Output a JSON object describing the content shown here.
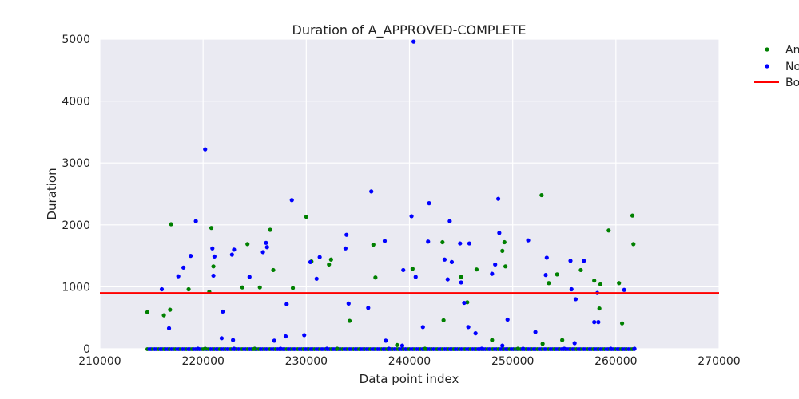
{
  "chart_data": {
    "type": "scatter",
    "title": "Duration of A_APPROVED-COMPLETE",
    "xlabel": "Data point index",
    "ylabel": "Duration",
    "xlim": [
      210000,
      270000
    ],
    "ylim": [
      0,
      5000
    ],
    "xticks": [
      "210000",
      "220000",
      "230000",
      "240000",
      "250000",
      "260000",
      "270000"
    ],
    "yticks": [
      "0",
      "1000",
      "2000",
      "3000",
      "4000",
      "5000"
    ],
    "grid": true,
    "legend_position": "outside right, partially cut off",
    "threshold": {
      "name": "Bo",
      "value": 900,
      "color": "#ff0000"
    },
    "series": [
      {
        "name": "An",
        "color": "#008000",
        "x": [
          214600,
          216200,
          216900,
          216800,
          218600,
          220600,
          220800,
          221000,
          223800,
          224300,
          225500,
          226500,
          226800,
          228700,
          230000,
          230500,
          232200,
          232400,
          234200,
          236500,
          236700,
          238800,
          240300,
          243200,
          243300,
          245000,
          245600,
          246500,
          248000,
          249000,
          249200,
          249300,
          252800,
          252900,
          253500,
          254300,
          254800,
          256600,
          257900,
          258500,
          258400,
          259300,
          260300,
          260600,
          261600,
          261700,
          220200,
          225000,
          233000,
          241500,
          250500
        ],
        "y": [
          590,
          540,
          2010,
          630,
          960,
          920,
          1950,
          1330,
          990,
          1690,
          990,
          1920,
          1270,
          980,
          2130,
          1410,
          1360,
          1440,
          450,
          1680,
          1150,
          60,
          1290,
          1720,
          460,
          1160,
          750,
          1280,
          140,
          1580,
          1720,
          1330,
          2480,
          80,
          1060,
          1200,
          140,
          1270,
          1100,
          1040,
          650,
          1910,
          1060,
          410,
          2150,
          1690,
          0,
          0,
          0,
          0,
          0
        ]
      },
      {
        "name": "No",
        "color": "#0000ff",
        "x": [
          216000,
          216700,
          217600,
          218100,
          218800,
          219300,
          220200,
          220900,
          221000,
          221100,
          221800,
          221900,
          222800,
          223000,
          222900,
          224500,
          225800,
          226100,
          226200,
          226900,
          228000,
          228100,
          228600,
          229800,
          230400,
          231000,
          231300,
          233800,
          233900,
          234100,
          236000,
          236300,
          237600,
          237700,
          239300,
          239400,
          240200,
          240400,
          240600,
          241300,
          241800,
          241900,
          243400,
          243700,
          243900,
          244100,
          244900,
          245000,
          245300,
          245700,
          245800,
          246400,
          248000,
          248300,
          248600,
          248700,
          249000,
          249500,
          251500,
          252200,
          253200,
          253300,
          255600,
          255700,
          256000,
          256100,
          256900,
          257900,
          258200,
          258300,
          260800,
          219500,
          223000,
          227500,
          232000,
          238000,
          247000,
          251000,
          255000,
          259500,
          261800
        ],
        "y": [
          960,
          330,
          1170,
          1310,
          1500,
          2060,
          3220,
          1620,
          1180,
          1490,
          170,
          600,
          1520,
          1600,
          140,
          1160,
          1560,
          1710,
          1640,
          130,
          200,
          720,
          2400,
          220,
          1400,
          1130,
          1480,
          1620,
          1840,
          730,
          660,
          2540,
          1740,
          130,
          50,
          1270,
          2140,
          4960,
          1160,
          350,
          1730,
          2350,
          1440,
          1120,
          2060,
          1400,
          1700,
          1070,
          740,
          350,
          1700,
          250,
          1210,
          1360,
          2420,
          1870,
          50,
          470,
          1750,
          270,
          1190,
          1470,
          1420,
          960,
          90,
          800,
          1420,
          430,
          900,
          430,
          950,
          0,
          0,
          0,
          0,
          0,
          0,
          0,
          0,
          0,
          0
        ]
      }
    ]
  }
}
